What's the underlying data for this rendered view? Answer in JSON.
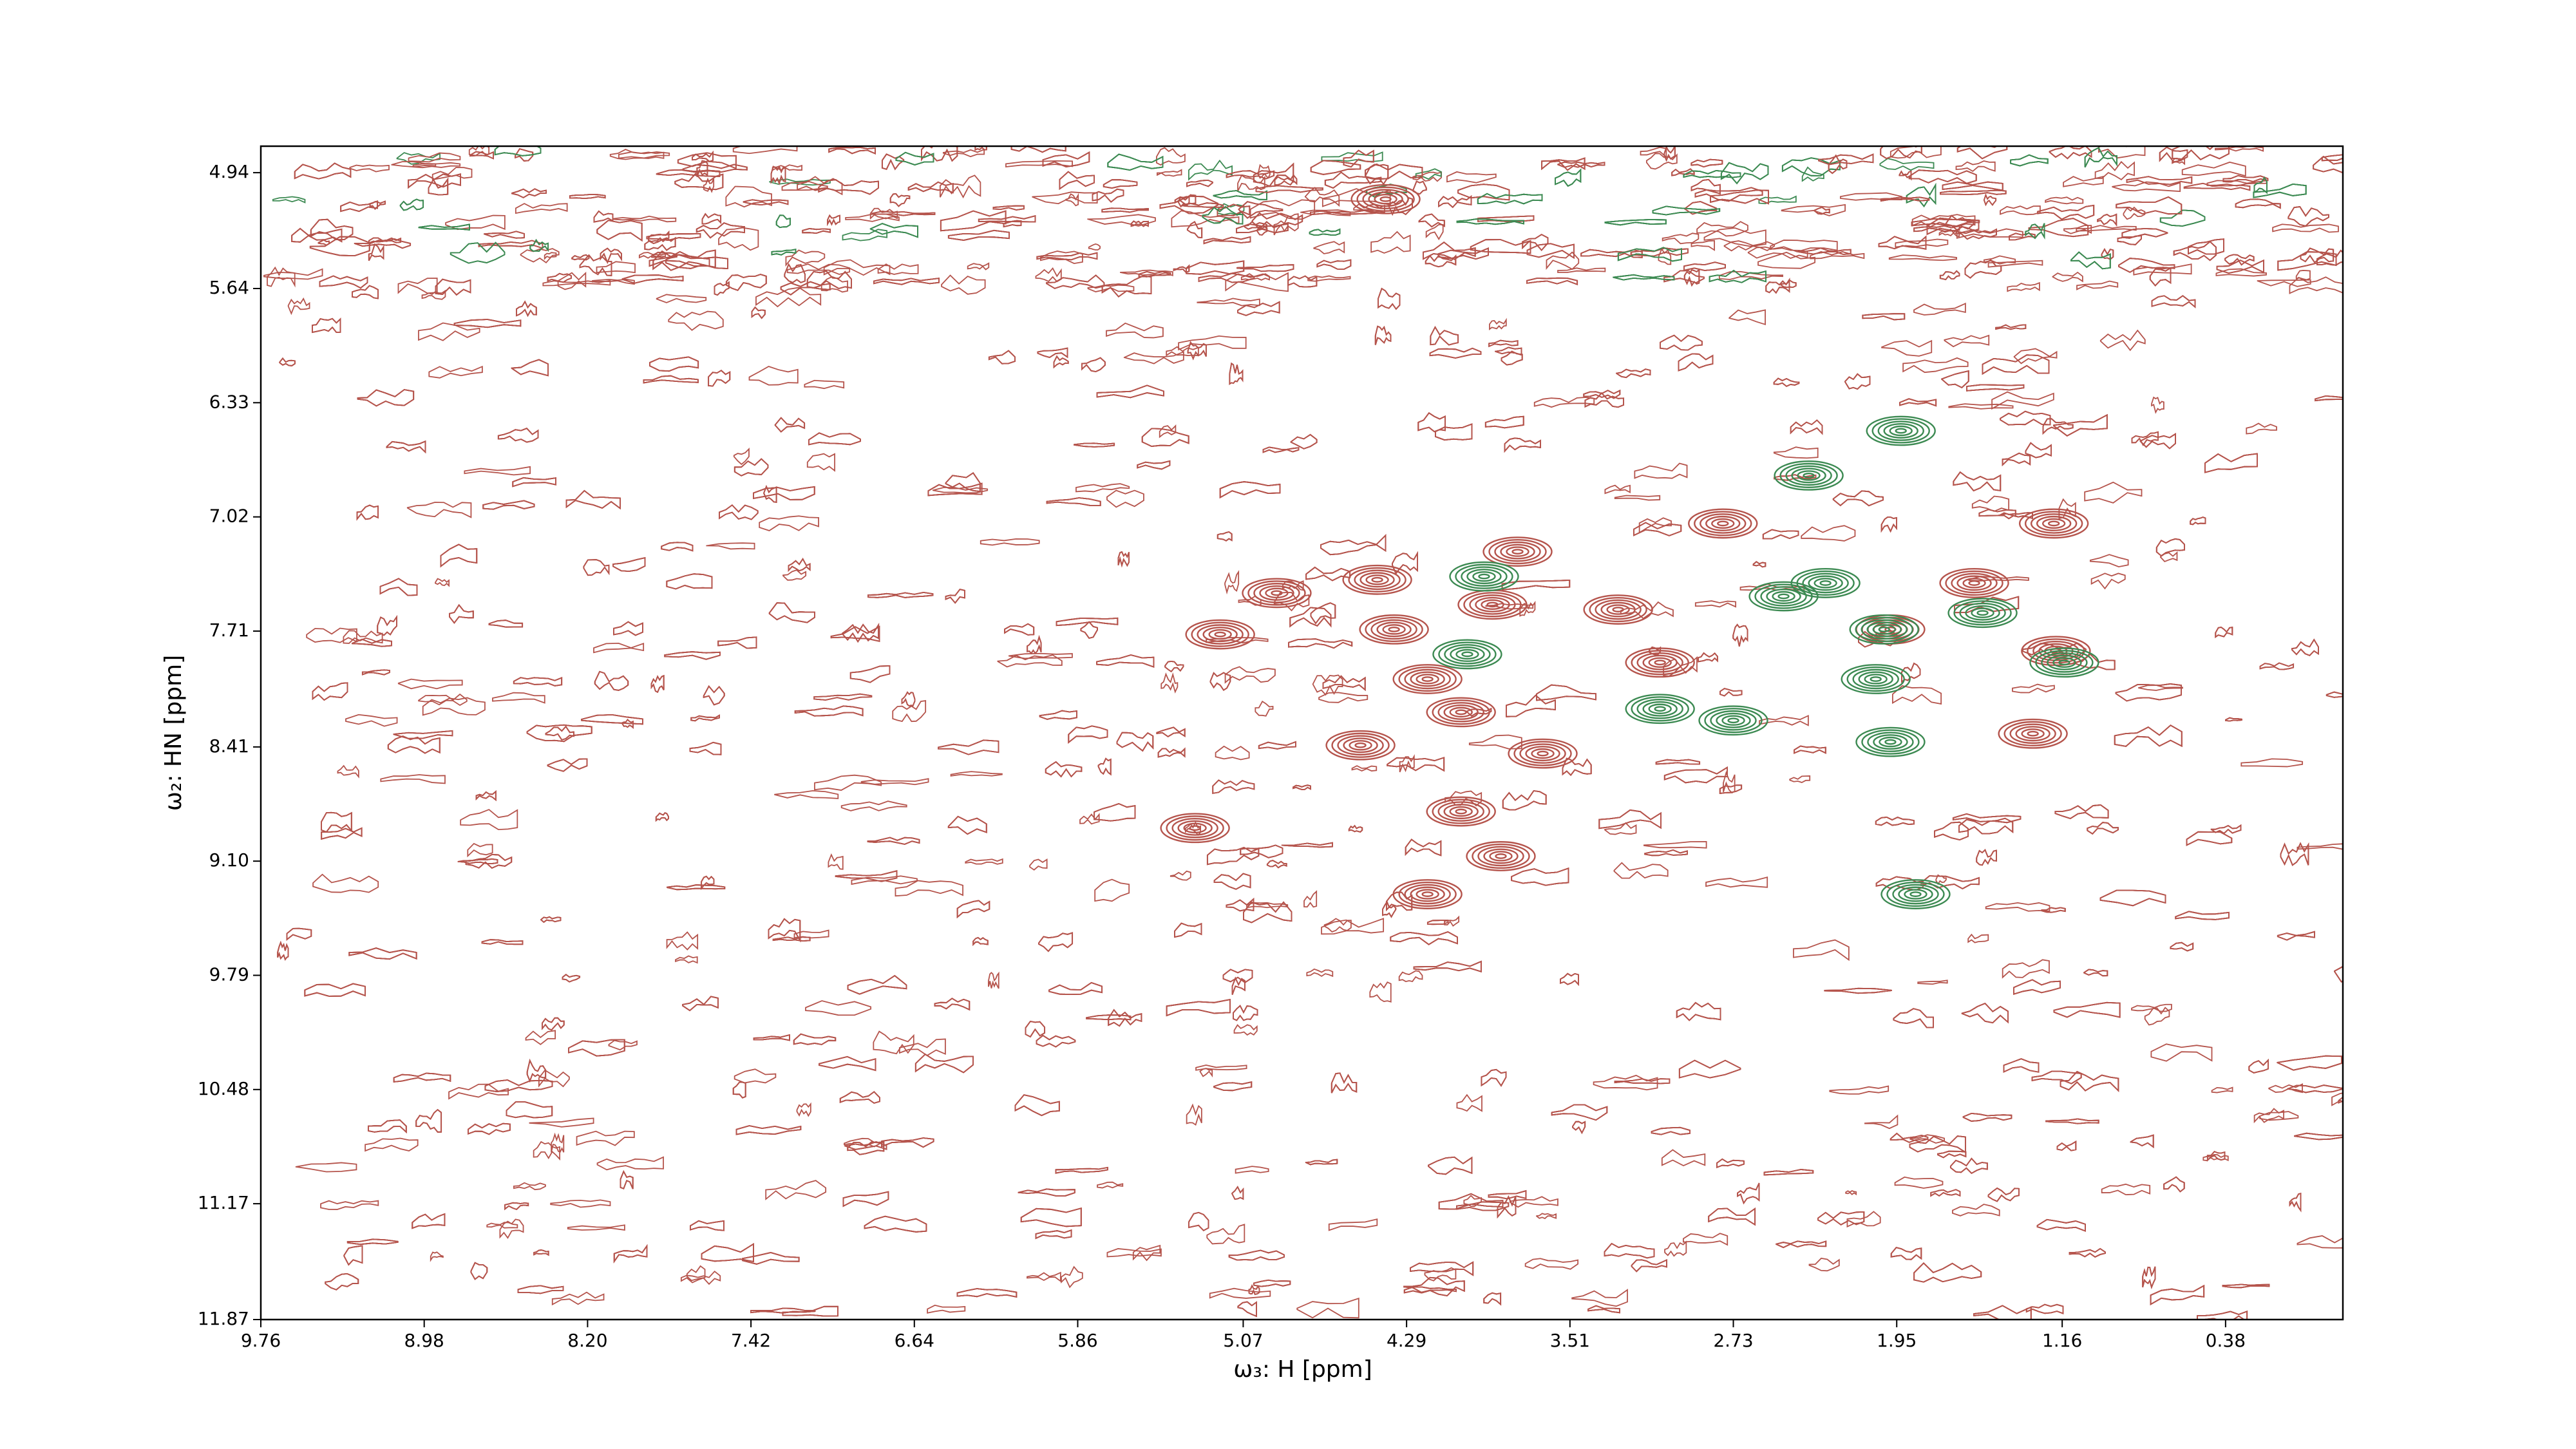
{
  "chart_data": {
    "type": "contour",
    "x_label": "ω₃: H [ppm]",
    "y_label": "ω₂: HN [ppm]",
    "xlim": [
      9.76,
      -0.18
    ],
    "ylim": [
      11.87,
      4.78
    ],
    "xticks": [
      9.76,
      8.98,
      {
        "value": 8.2,
        "label": "8.20"
      },
      7.42,
      6.64,
      5.86,
      5.07,
      4.29,
      3.51,
      2.73,
      1.95,
      1.16,
      0.38
    ],
    "yticks": [
      4.94,
      5.64,
      6.33,
      7.02,
      7.71,
      8.41,
      {
        "value": 9.1,
        "label": "9.10"
      },
      9.79,
      10.48,
      11.17,
      11.87
    ],
    "series": [
      {
        "color": "#b5544c",
        "x": [
          4.35,
          4.91,
          5.18,
          4.43,
          4.19,
          3.88,
          3.76,
          4.51,
          4.03,
          3.64,
          5.3,
          4.19,
          3.84,
          2.78,
          1.58,
          1.2,
          1.3,
          3.28,
          3.08,
          1.98,
          1.19,
          4.39,
          4.03
        ],
        "y": [
          7.7,
          7.48,
          7.73,
          7.4,
          8.0,
          7.55,
          7.23,
          8.4,
          8.2,
          8.45,
          8.9,
          9.3,
          9.07,
          7.06,
          7.42,
          7.06,
          8.33,
          7.58,
          7.9,
          7.7,
          7.83,
          5.1,
          8.8
        ]
      },
      {
        "color": "#3c8a52",
        "x": [
          2.37,
          2.29,
          2.01,
          1.54,
          1.93,
          2.73,
          3.08,
          1.98,
          1.86,
          3.92,
          4.0,
          2.05,
          2.49,
          1.15
        ],
        "y": [
          6.77,
          7.42,
          7.7,
          7.6,
          6.5,
          8.25,
          8.18,
          8.38,
          9.3,
          7.38,
          7.85,
          8.0,
          7.5,
          7.9
        ]
      }
    ]
  }
}
